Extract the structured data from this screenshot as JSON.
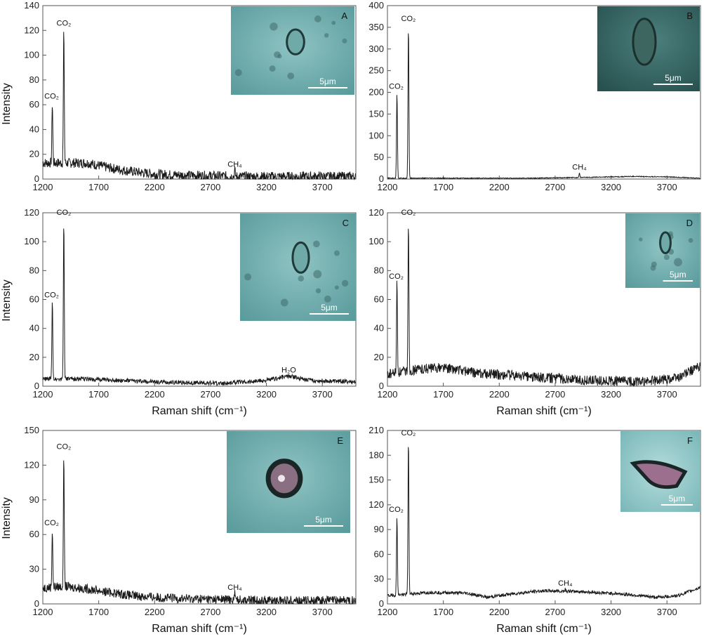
{
  "chart_data": [
    {
      "panel": "A",
      "type": "line",
      "xlabel": "",
      "ylabel": "Intensity",
      "xlim": [
        1200,
        4000
      ],
      "ylim": [
        0,
        140
      ],
      "xticks": [
        1200,
        1700,
        2200,
        2700,
        3200,
        3700
      ],
      "yticks": [
        0,
        20,
        40,
        60,
        80,
        100,
        120,
        140
      ],
      "baseline": [
        [
          1200,
          13
        ],
        [
          1400,
          13
        ],
        [
          1600,
          13
        ],
        [
          1800,
          9
        ],
        [
          2000,
          6
        ],
        [
          2200,
          4
        ],
        [
          2500,
          3
        ],
        [
          3000,
          2
        ],
        [
          3500,
          2
        ],
        [
          4000,
          2
        ]
      ],
      "noise": 4,
      "peaks": [
        {
          "x": 1285,
          "y": 62,
          "label": "CO₂"
        },
        {
          "x": 1388,
          "y": 121,
          "label": "CO₂"
        },
        {
          "x": 2917,
          "y": 7,
          "label": "CH₄"
        }
      ],
      "inset": {
        "letter": "A",
        "scale": "5μm",
        "style": "plain"
      }
    },
    {
      "panel": "B",
      "type": "line",
      "xlabel": "",
      "ylabel": "",
      "xlim": [
        1200,
        4000
      ],
      "ylim": [
        0,
        400
      ],
      "xticks": [
        1200,
        1700,
        2200,
        2700,
        3200,
        3700
      ],
      "yticks": [
        0,
        50,
        100,
        150,
        200,
        250,
        300,
        350,
        400
      ],
      "baseline": [
        [
          1200,
          2
        ],
        [
          2500,
          2
        ],
        [
          3000,
          4
        ],
        [
          3400,
          6
        ],
        [
          3700,
          5
        ],
        [
          4000,
          2
        ]
      ],
      "noise": 1,
      "peaks": [
        {
          "x": 1285,
          "y": 200,
          "label": "CO₂"
        },
        {
          "x": 1388,
          "y": 356,
          "label": "CO₂"
        },
        {
          "x": 2917,
          "y": 14,
          "label": "CH₄"
        }
      ],
      "inset": {
        "letter": "B",
        "scale": "5μm",
        "style": "dark"
      }
    },
    {
      "panel": "C",
      "type": "line",
      "xlabel": "Raman shift (cm⁻¹)",
      "ylabel": "Intensity",
      "xlim": [
        1200,
        4000
      ],
      "ylim": [
        0,
        120
      ],
      "xticks": [
        1200,
        1700,
        2200,
        2700,
        3200,
        3700
      ],
      "yticks": [
        0,
        20,
        40,
        60,
        80,
        100,
        120
      ],
      "baseline": [
        [
          1200,
          5
        ],
        [
          1600,
          5
        ],
        [
          2200,
          3
        ],
        [
          2800,
          2
        ],
        [
          3200,
          4
        ],
        [
          3400,
          6
        ],
        [
          3600,
          4
        ],
        [
          4000,
          3
        ]
      ],
      "noise": 1.5,
      "peaks": [
        {
          "x": 1285,
          "y": 59,
          "label": "CO₂"
        },
        {
          "x": 1388,
          "y": 116,
          "label": "CO₂"
        },
        {
          "x": 3400,
          "y": 7,
          "label": "H₂O"
        }
      ],
      "inset": {
        "letter": "C",
        "scale": "5μm",
        "style": "plain"
      }
    },
    {
      "panel": "D",
      "type": "line",
      "xlabel": "Raman shift (cm⁻¹)",
      "ylabel": "",
      "xlim": [
        1200,
        4000
      ],
      "ylim": [
        0,
        120
      ],
      "xticks": [
        1200,
        1700,
        2200,
        2700,
        3200,
        3700
      ],
      "yticks": [
        0,
        20,
        40,
        60,
        80,
        100,
        120
      ],
      "baseline": [
        [
          1200,
          8
        ],
        [
          1500,
          12
        ],
        [
          1700,
          13
        ],
        [
          2000,
          9
        ],
        [
          2400,
          7
        ],
        [
          3000,
          4
        ],
        [
          3500,
          3
        ],
        [
          3800,
          6
        ],
        [
          4000,
          14
        ]
      ],
      "noise": 3.5,
      "peaks": [
        {
          "x": 1285,
          "y": 72,
          "label": "CO₂"
        },
        {
          "x": 1388,
          "y": 116,
          "label": "CO₂"
        }
      ],
      "inset": {
        "letter": "D",
        "scale": "5μm",
        "style": "plain"
      }
    },
    {
      "panel": "E",
      "type": "line",
      "xlabel": "Raman shift (cm⁻¹)",
      "ylabel": "Intensity",
      "xlim": [
        1200,
        4000
      ],
      "ylim": [
        0,
        150
      ],
      "xticks": [
        1200,
        1700,
        2200,
        2700,
        3200,
        3700
      ],
      "yticks": [
        0,
        30,
        60,
        90,
        120,
        150
      ],
      "baseline": [
        [
          1200,
          14
        ],
        [
          1400,
          15
        ],
        [
          1600,
          13
        ],
        [
          1800,
          10
        ],
        [
          2000,
          7
        ],
        [
          2300,
          5
        ],
        [
          2700,
          4
        ],
        [
          3200,
          3
        ],
        [
          4000,
          3
        ]
      ],
      "noise": 4,
      "peaks": [
        {
          "x": 1285,
          "y": 65,
          "label": "CO₂"
        },
        {
          "x": 1388,
          "y": 131,
          "label": "CO₂"
        },
        {
          "x": 2917,
          "y": 9,
          "label": "CH₄"
        }
      ],
      "inset": {
        "letter": "E",
        "scale": "5μm",
        "style": "ring"
      }
    },
    {
      "panel": "F",
      "type": "line",
      "xlabel": "Raman shift (cm⁻¹)",
      "ylabel": "",
      "xlim": [
        1200,
        4000
      ],
      "ylim": [
        0,
        210
      ],
      "xticks": [
        1200,
        1700,
        2200,
        2700,
        3200,
        3700
      ],
      "yticks": [
        0,
        30,
        60,
        90,
        120,
        150,
        180,
        210
      ],
      "baseline": [
        [
          1200,
          10
        ],
        [
          1600,
          14
        ],
        [
          1900,
          13
        ],
        [
          2100,
          8
        ],
        [
          2300,
          12
        ],
        [
          2600,
          16
        ],
        [
          2900,
          15
        ],
        [
          3300,
          12
        ],
        [
          3600,
          8
        ],
        [
          3800,
          10
        ],
        [
          4000,
          20
        ]
      ],
      "noise": 2,
      "peaks": [
        {
          "x": 1285,
          "y": 107,
          "label": "CO₂"
        },
        {
          "x": 1388,
          "y": 200,
          "label": "CO₂"
        },
        {
          "x": 2790,
          "y": 18,
          "label": "CH₄"
        }
      ],
      "inset": {
        "letter": "F",
        "scale": "5μm",
        "style": "teardrop"
      }
    }
  ]
}
